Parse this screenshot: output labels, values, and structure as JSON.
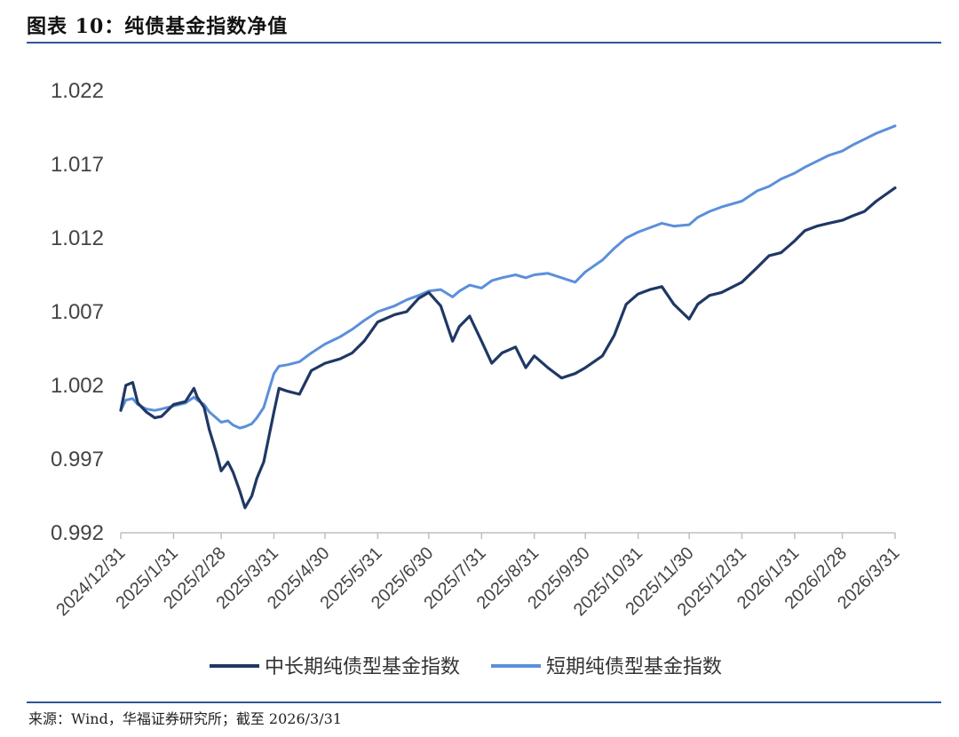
{
  "figure_title": "图表 10：纯债基金指数净值",
  "source_note": "来源：Wind，华福证券研究所；截至 2026/3/31",
  "chart_data": {
    "type": "line",
    "title": "",
    "xlabel": "",
    "ylabel": "",
    "ylim": [
      0.992,
      1.022
    ],
    "y_ticks": [
      "1.022",
      "1.017",
      "1.012",
      "1.007",
      "1.002",
      "0.997",
      "0.992"
    ],
    "x_ticks": [
      "2024/12/31",
      "2025/1/31",
      "2025/2/28",
      "2025/3/31",
      "2025/4/30",
      "2025/5/31",
      "2025/6/30",
      "2025/7/31",
      "2025/8/31",
      "2025/9/30",
      "2025/10/31",
      "2025/11/30",
      "2025/12/31",
      "2026/1/31",
      "2026/2/28",
      "2026/3/31"
    ],
    "grid": false,
    "legend_position": "bottom",
    "series": [
      {
        "name": "中长期纯债型基金指数",
        "color": "#1f3864",
        "x": [
          "2024/12/31",
          "2025/1/3",
          "2025/1/7",
          "2025/1/10",
          "2025/1/15",
          "2025/1/20",
          "2025/1/24",
          "2025/1/31",
          "2025/2/7",
          "2025/2/12",
          "2025/2/14",
          "2025/2/18",
          "2025/2/21",
          "2025/2/25",
          "2025/2/28",
          "2025/3/4",
          "2025/3/7",
          "2025/3/11",
          "2025/3/14",
          "2025/3/18",
          "2025/3/21",
          "2025/3/25",
          "2025/3/31",
          "2025/4/3",
          "2025/4/8",
          "2025/4/15",
          "2025/4/22",
          "2025/4/30",
          "2025/5/9",
          "2025/5/16",
          "2025/5/23",
          "2025/5/31",
          "2025/6/10",
          "2025/6/17",
          "2025/6/24",
          "2025/6/30",
          "2025/7/7",
          "2025/7/14",
          "2025/7/18",
          "2025/7/24",
          "2025/7/31",
          "2025/8/6",
          "2025/8/12",
          "2025/8/20",
          "2025/8/26",
          "2025/8/31",
          "2025/9/8",
          "2025/9/16",
          "2025/9/24",
          "2025/9/30",
          "2025/10/10",
          "2025/10/17",
          "2025/10/24",
          "2025/10/31",
          "2025/11/7",
          "2025/11/14",
          "2025/11/21",
          "2025/11/30",
          "2025/12/5",
          "2025/12/12",
          "2025/12/19",
          "2025/12/31",
          "2026/1/9",
          "2026/1/16",
          "2026/1/23",
          "2026/1/31",
          "2026/2/6",
          "2026/2/13",
          "2026/2/20",
          "2026/2/28",
          "2026/3/6",
          "2026/3/13",
          "2026/3/20",
          "2026/3/31"
        ],
        "values": [
          1.0003,
          1.002,
          1.0022,
          1.0008,
          1.0002,
          0.9998,
          0.9999,
          1.0007,
          1.0009,
          1.0018,
          1.0012,
          1.0005,
          0.999,
          0.9975,
          0.9962,
          0.9968,
          0.9961,
          0.9948,
          0.9937,
          0.9945,
          0.9957,
          0.9968,
          1.0002,
          1.0018,
          1.0016,
          1.0014,
          1.003,
          1.0035,
          1.0038,
          1.0042,
          1.005,
          1.0063,
          1.0068,
          1.007,
          1.0079,
          1.0083,
          1.0074,
          1.005,
          1.006,
          1.0067,
          1.005,
          1.0035,
          1.0042,
          1.0046,
          1.0032,
          1.004,
          1.0032,
          1.0025,
          1.0028,
          1.0032,
          1.004,
          1.0054,
          1.0075,
          1.0082,
          1.0085,
          1.0087,
          1.0075,
          1.0065,
          1.0075,
          1.0081,
          1.0083,
          1.009,
          1.01,
          1.0108,
          1.011,
          1.0118,
          1.0125,
          1.0128,
          1.013,
          1.0132,
          1.0135,
          1.0138,
          1.0145,
          1.0154
        ]
      },
      {
        "name": "短期纯债型基金指数",
        "color": "#5b8fdb",
        "x": [
          "2024/12/31",
          "2025/1/3",
          "2025/1/7",
          "2025/1/10",
          "2025/1/15",
          "2025/1/20",
          "2025/1/24",
          "2025/1/31",
          "2025/2/7",
          "2025/2/12",
          "2025/2/14",
          "2025/2/18",
          "2025/2/21",
          "2025/2/25",
          "2025/2/28",
          "2025/3/4",
          "2025/3/7",
          "2025/3/11",
          "2025/3/14",
          "2025/3/18",
          "2025/3/21",
          "2025/3/25",
          "2025/3/31",
          "2025/4/3",
          "2025/4/8",
          "2025/4/15",
          "2025/4/22",
          "2025/4/30",
          "2025/5/9",
          "2025/5/16",
          "2025/5/23",
          "2025/5/31",
          "2025/6/10",
          "2025/6/17",
          "2025/6/24",
          "2025/6/30",
          "2025/7/7",
          "2025/7/14",
          "2025/7/18",
          "2025/7/24",
          "2025/7/31",
          "2025/8/6",
          "2025/8/12",
          "2025/8/20",
          "2025/8/26",
          "2025/8/31",
          "2025/9/8",
          "2025/9/16",
          "2025/9/24",
          "2025/9/30",
          "2025/10/10",
          "2025/10/17",
          "2025/10/24",
          "2025/10/31",
          "2025/11/7",
          "2025/11/14",
          "2025/11/21",
          "2025/11/30",
          "2025/12/5",
          "2025/12/12",
          "2025/12/19",
          "2025/12/31",
          "2026/1/9",
          "2026/1/16",
          "2026/1/23",
          "2026/1/31",
          "2026/2/6",
          "2026/2/13",
          "2026/2/20",
          "2026/2/28",
          "2026/3/6",
          "2026/3/13",
          "2026/3/20",
          "2026/3/31"
        ],
        "values": [
          1.0003,
          1.001,
          1.0011,
          1.0007,
          1.0004,
          1.0003,
          1.0004,
          1.0006,
          1.0008,
          1.0012,
          1.001,
          1.0007,
          1.0002,
          0.9998,
          0.9995,
          0.9996,
          0.9993,
          0.9991,
          0.9992,
          0.9994,
          0.9998,
          1.0005,
          1.0028,
          1.0033,
          1.0034,
          1.0036,
          1.0042,
          1.0048,
          1.0053,
          1.0058,
          1.0064,
          1.007,
          1.0074,
          1.0078,
          1.0081,
          1.0084,
          1.0085,
          1.008,
          1.0084,
          1.0088,
          1.0086,
          1.0091,
          1.0093,
          1.0095,
          1.0093,
          1.0095,
          1.0096,
          1.0093,
          1.009,
          1.0097,
          1.0105,
          1.0113,
          1.012,
          1.0124,
          1.0127,
          1.013,
          1.0128,
          1.0129,
          1.0134,
          1.0138,
          1.0141,
          1.0145,
          1.0152,
          1.0155,
          1.016,
          1.0164,
          1.0168,
          1.0172,
          1.0176,
          1.0179,
          1.0183,
          1.0187,
          1.0191,
          1.0196
        ]
      }
    ]
  }
}
